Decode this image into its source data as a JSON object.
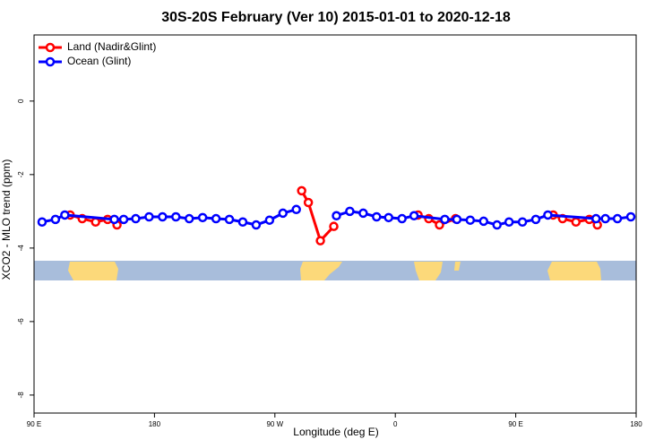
{
  "chart_data": {
    "type": "line",
    "title": "30S-20S February (Ver 10)   2015-01-01 to 2020-12-18",
    "x_label": "Longitude (deg E)",
    "y_label": "XCO2 - MLO trend (ppm)",
    "xlim": [
      90,
      540
    ],
    "ylim": [
      -8.49,
      1.8
    ],
    "xticks": [
      {
        "value": 90,
        "label": "90 E"
      },
      180,
      {
        "value": 270,
        "label": "90 W"
      },
      {
        "value": 360,
        "label": "0"
      },
      {
        "value": 450,
        "label": "90 E"
      },
      {
        "value": 540,
        "label": "180"
      }
    ],
    "yticks": [
      0,
      -2,
      -4,
      -6,
      -8
    ],
    "legend": "top-left",
    "series": [
      {
        "name": "Land (Nadir&Glint)",
        "color": "#ff0000",
        "x": [
          117,
          126,
          136,
          145,
          152,
          220,
          290,
          295,
          304,
          314,
          345,
          377,
          385,
          393,
          405,
          440,
          478,
          485,
          495,
          505,
          511
        ],
        "values": [
          -3.1,
          -3.2,
          -3.29,
          -3.22,
          -3.37,
          null,
          -2.44,
          -2.76,
          -3.8,
          -3.41,
          null,
          -3.1,
          -3.2,
          -3.37,
          -3.2,
          null,
          -3.1,
          -3.2,
          -3.29,
          -3.22,
          -3.37
        ]
      },
      {
        "name": "Ocean (Glint)",
        "color": "#0000ff",
        "x": [
          96,
          106,
          113,
          150,
          157,
          166,
          176,
          186,
          196,
          206,
          216,
          226,
          236,
          246,
          256,
          266,
          276,
          286,
          301,
          316,
          326,
          336,
          346,
          355,
          365,
          374,
          397,
          406,
          416,
          426,
          436,
          445,
          455,
          465,
          474,
          510,
          517,
          526,
          536
        ],
        "values": [
          -3.29,
          -3.22,
          -3.1,
          -3.22,
          -3.22,
          -3.2,
          -3.15,
          -3.15,
          -3.15,
          -3.2,
          -3.17,
          -3.2,
          -3.22,
          -3.29,
          -3.37,
          -3.24,
          -3.05,
          -2.95,
          null,
          -3.12,
          -3.0,
          -3.05,
          -3.15,
          -3.17,
          -3.2,
          -3.12,
          -3.22,
          -3.22,
          -3.24,
          -3.27,
          -3.37,
          -3.29,
          -3.29,
          -3.22,
          -3.1,
          -3.2,
          -3.2,
          -3.2,
          -3.15
        ]
      }
    ]
  }
}
